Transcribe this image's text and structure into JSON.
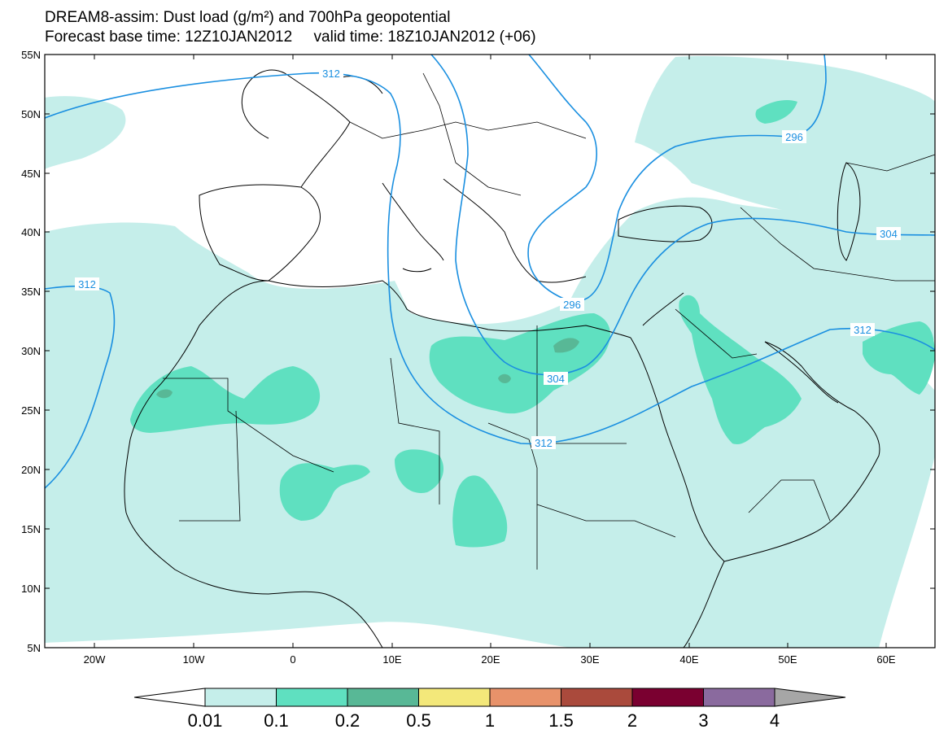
{
  "title": {
    "line1": "DREAM8-assim: Dust load (g/m²) and 700hPa geopotential",
    "line2": "Forecast base time: 12Z10JAN2012     valid time: 18Z10JAN2012 (+06)"
  },
  "map": {
    "lat_labels": [
      "55N",
      "50N",
      "45N",
      "40N",
      "35N",
      "30N",
      "25N",
      "20N",
      "15N",
      "10N",
      "5N"
    ],
    "lon_labels": [
      "20W",
      "10W",
      "0",
      "10E",
      "20E",
      "30E",
      "40E",
      "50E",
      "60E"
    ]
  },
  "contours": [
    {
      "label": "312"
    },
    {
      "label": "312"
    },
    {
      "label": "312"
    },
    {
      "label": "312"
    },
    {
      "label": "304"
    },
    {
      "label": "304"
    },
    {
      "label": "296"
    },
    {
      "label": "296"
    }
  ],
  "legend": {
    "labels": [
      "0.01",
      "0.1",
      "0.2",
      "0.5",
      "1",
      "1.5",
      "2",
      "3",
      "4"
    ],
    "colors": [
      "#ffffff",
      "#c5eeea",
      "#5fe0c0",
      "#58b896",
      "#f3e87a",
      "#e8926a",
      "#aa4a3c",
      "#7a0030",
      "#8a6a9e",
      "#a6a6a6"
    ]
  },
  "colors": {
    "dust_light": "#c5eeea",
    "dust_mid": "#5fe0c0",
    "dust_dark": "#58b896",
    "contour": "#1a8fe0"
  }
}
